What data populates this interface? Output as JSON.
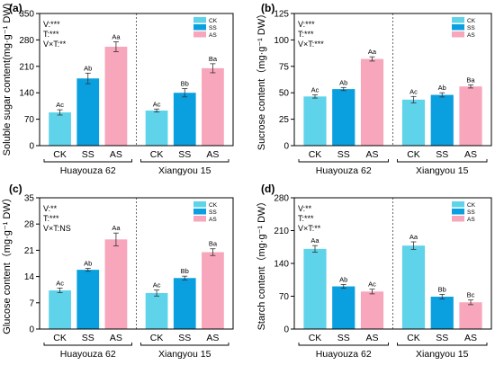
{
  "colors": {
    "CK": "#5fd3ea",
    "SS": "#0aa0e0",
    "AS": "#f7a6bc"
  },
  "chart_data": [
    {
      "panel": "(a)",
      "type": "bar",
      "ylabel": "Soluble sugar content(mg·g⁻¹ DW)",
      "ylim": [
        0,
        350
      ],
      "yticks": [
        0,
        70,
        140,
        210,
        280,
        350
      ],
      "groups": [
        "Huayouza 62",
        "Xiangyou 15"
      ],
      "categories": [
        "CK",
        "SS",
        "AS"
      ],
      "legend": [
        "CK",
        "SS",
        "AS"
      ],
      "stats": [
        "V:***",
        "T:***",
        "V×T:**"
      ],
      "values": [
        [
          88,
          178,
          262
        ],
        [
          93,
          140,
          205
        ]
      ],
      "errors": [
        [
          7,
          14,
          13
        ],
        [
          4,
          11,
          12
        ]
      ],
      "labels": [
        [
          "Ac",
          "Ab",
          "Aa"
        ],
        [
          "Ac",
          "Bb",
          "Ba"
        ]
      ]
    },
    {
      "panel": "(b)",
      "type": "bar",
      "ylabel": "Sucrose content（mg·g⁻¹ DW）",
      "ylim": [
        0,
        125
      ],
      "yticks": [
        0,
        25,
        50,
        75,
        100,
        125
      ],
      "groups": [
        "Huayouza 62",
        "Xiangyou 15"
      ],
      "categories": [
        "CK",
        "SS",
        "AS"
      ],
      "legend": [
        "CK",
        "SS",
        "AS"
      ],
      "stats": [
        "V:***",
        "T:***",
        "V×T:***"
      ],
      "values": [
        [
          46.5,
          53.5,
          82
        ],
        [
          43.5,
          48,
          56
        ]
      ],
      "errors": [
        [
          1.5,
          1.5,
          2
        ],
        [
          3,
          2,
          1.5
        ]
      ],
      "labels": [
        [
          "Ac",
          "Ab",
          "Aa"
        ],
        [
          "Ac",
          "Ab",
          "Ba"
        ]
      ]
    },
    {
      "panel": "(c)",
      "type": "bar",
      "ylabel": "Glucose content（mg·g⁻¹ DW）",
      "ylim": [
        0,
        35
      ],
      "yticks": [
        0,
        7,
        14,
        21,
        28,
        35
      ],
      "groups": [
        "Huayouza 62",
        "Xiangyou 15"
      ],
      "categories": [
        "CK",
        "SS",
        "AS"
      ],
      "legend": [
        "CK",
        "SS",
        "AS"
      ],
      "stats": [
        "V:**",
        "T:***",
        "V×T:NS"
      ],
      "values": [
        [
          10.3,
          15.8,
          23.9
        ],
        [
          9.6,
          13.6,
          20.5
        ]
      ],
      "errors": [
        [
          0.6,
          0.4,
          1.7
        ],
        [
          0.8,
          0.5,
          0.9
        ]
      ],
      "labels": [
        [
          "Ac",
          "Ab",
          "Aa"
        ],
        [
          "Ac",
          "Bb",
          "Ba"
        ]
      ]
    },
    {
      "panel": "(d)",
      "type": "bar",
      "ylabel": "Starch content（mg·g⁻¹ DW）",
      "ylim": [
        0,
        280
      ],
      "yticks": [
        0,
        70,
        140,
        210,
        280
      ],
      "groups": [
        "Huayouza 62",
        "Xiangyou 15"
      ],
      "categories": [
        "CK",
        "SS",
        "AS"
      ],
      "legend": [
        "CK",
        "SS",
        "AS"
      ],
      "stats": [
        "V:**",
        "T:***",
        "V×T:**"
      ],
      "values": [
        [
          171,
          91,
          80
        ],
        [
          178,
          69,
          57
        ]
      ],
      "errors": [
        [
          7,
          4,
          5
        ],
        [
          8,
          5,
          5
        ]
      ],
      "labels": [
        [
          "Aa",
          "Ab",
          "Ac"
        ],
        [
          "Aa",
          "Bb",
          "Bc"
        ]
      ]
    }
  ]
}
